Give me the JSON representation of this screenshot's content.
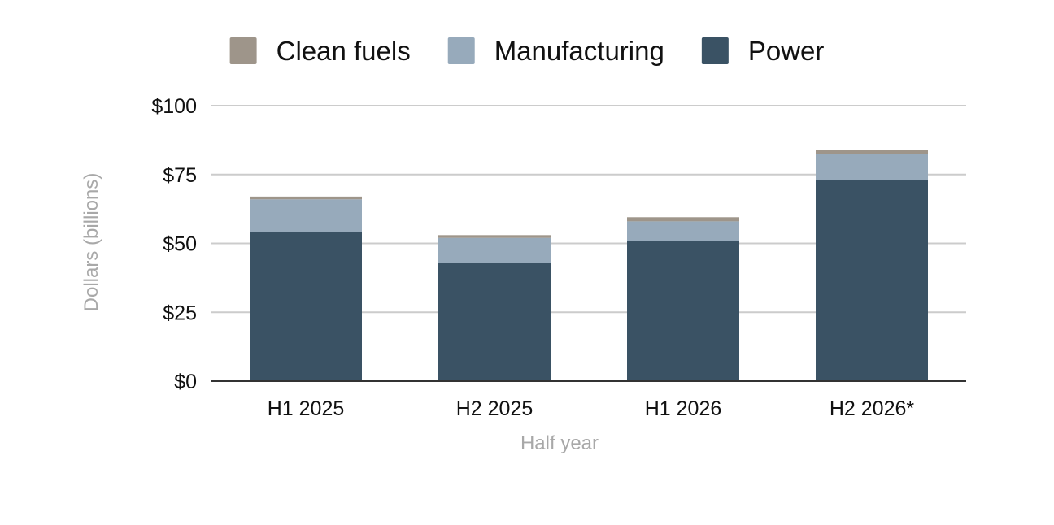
{
  "chart_data": {
    "type": "bar",
    "stacked": true,
    "title": "",
    "xlabel": "Half year",
    "ylabel": "Dollars (billions)",
    "categories": [
      "H1 2025",
      "H2 2025",
      "H1 2026",
      "H2 2026*"
    ],
    "series": [
      {
        "name": "Power",
        "values": [
          54,
          43,
          51,
          73
        ],
        "color": "#3a5264"
      },
      {
        "name": "Manufacturing",
        "values": [
          12,
          9,
          7,
          9.5
        ],
        "color": "#97aabb"
      },
      {
        "name": "Clean fuels",
        "values": [
          1,
          1,
          1.5,
          1.5
        ],
        "color": "#9e958a"
      }
    ],
    "legend_order": [
      "Clean fuels",
      "Manufacturing",
      "Power"
    ],
    "legend_position": "top",
    "ylim": [
      0,
      100
    ],
    "yticks": [
      0,
      25,
      50,
      75,
      100
    ],
    "ytick_labels": [
      "$0",
      "$25",
      "$50",
      "$75",
      "$100"
    ],
    "grid": true,
    "colors": {
      "grid": "#cccccc",
      "baseline": "#333333"
    }
  }
}
